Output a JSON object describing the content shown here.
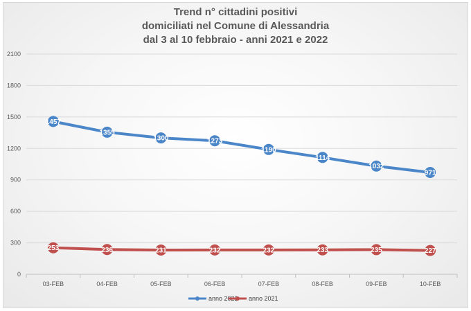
{
  "chart_data": {
    "type": "line",
    "title_lines": [
      "Trend n° cittadini positivi",
      "domiciliati nel Comune di Alessandria",
      "dal 3 al 10 febbraio - anni 2021 e 2022"
    ],
    "categories": [
      "03-FEB",
      "04-FEB",
      "05-FEB",
      "06-FEB",
      "07-FEB",
      "08-FEB",
      "09-FEB",
      "10-FEB"
    ],
    "y_ticks": [
      "0",
      "300",
      "600",
      "900",
      "1200",
      "1500",
      "1800",
      "2100"
    ],
    "ylim": [
      0,
      2100
    ],
    "grid": true,
    "legend_position": "bottom",
    "series": [
      {
        "name": "anno 2022",
        "color": "#4a86c8",
        "values": [
          1457,
          1355,
          1300,
          1273,
          1190,
          1114,
          1032,
          971
        ]
      },
      {
        "name": "anno 2021",
        "color": "#c0504d",
        "values": [
          253,
          236,
          231,
          232,
          232,
          233,
          235,
          227
        ]
      }
    ]
  }
}
